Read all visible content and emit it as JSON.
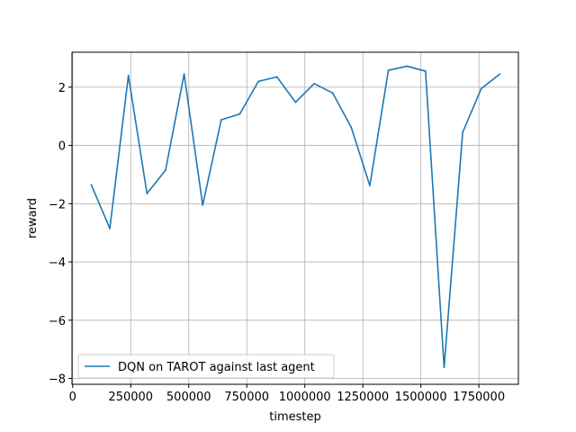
{
  "chart_data": {
    "type": "line",
    "title": "",
    "xlabel": "timestep",
    "ylabel": "reward",
    "xlim": [
      -3000,
      1920000
    ],
    "ylim": [
      -8.2,
      3.2
    ],
    "grid": true,
    "legend_position": "lower-left",
    "x_ticks": [
      0,
      250000,
      500000,
      750000,
      1000000,
      1250000,
      1500000,
      1750000
    ],
    "y_ticks": [
      -8,
      -6,
      -4,
      -2,
      0,
      2
    ],
    "x_tick_labels": [
      "0",
      "250000",
      "500000",
      "750000",
      "1000000",
      "1250000",
      "1500000",
      "1750000"
    ],
    "y_tick_labels": [
      "−8",
      "−6",
      "−4",
      "−2",
      "0",
      "2"
    ],
    "series": [
      {
        "name": "DQN on TAROT against last agent",
        "color": "#1f77b4",
        "x": [
          80000,
          160000,
          240000,
          320000,
          400000,
          480000,
          560000,
          640000,
          720000,
          800000,
          880000,
          960000,
          1040000,
          1120000,
          1200000,
          1280000,
          1360000,
          1440000,
          1520000,
          1600000,
          1680000,
          1760000,
          1840000
        ],
        "y": [
          -1.35,
          -2.85,
          2.4,
          -1.65,
          -0.85,
          2.45,
          -2.05,
          0.88,
          1.08,
          2.2,
          2.35,
          1.48,
          2.12,
          1.8,
          0.62,
          -1.38,
          2.58,
          2.72,
          2.55,
          -7.62,
          0.45,
          1.95,
          2.45
        ]
      }
    ]
  }
}
